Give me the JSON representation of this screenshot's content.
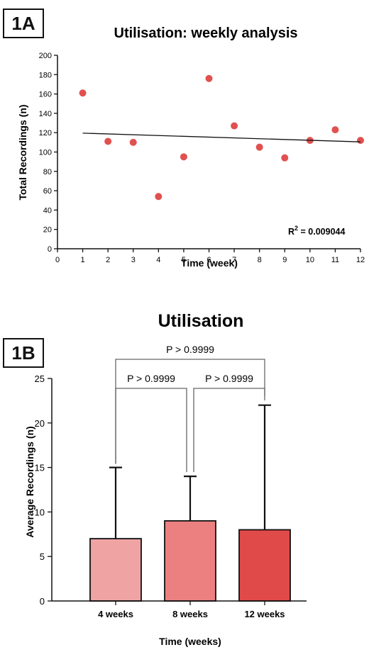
{
  "chart_data": [
    {
      "panel": "1A",
      "type": "scatter",
      "title": "Utilisation: weekly analysis",
      "xlabel": "Time (week)",
      "ylabel": "Total Recordings (n)",
      "xlim": [
        0,
        12
      ],
      "ylim": [
        0,
        200
      ],
      "xticks": [
        0,
        1,
        2,
        3,
        4,
        5,
        6,
        7,
        8,
        9,
        10,
        11,
        12
      ],
      "yticks": [
        0,
        20,
        40,
        60,
        80,
        100,
        120,
        140,
        160,
        180,
        200
      ],
      "point_color": "#e0514f",
      "x": [
        1,
        2,
        3,
        4,
        5,
        6,
        7,
        8,
        9,
        10,
        11,
        12
      ],
      "y": [
        161,
        111,
        110,
        54,
        95,
        176,
        127,
        105,
        94,
        112,
        123,
        112
      ],
      "trendline": {
        "x": [
          1,
          12
        ],
        "y": [
          119.5,
          110.5
        ]
      },
      "annotation": {
        "label": "R",
        "sup": "2",
        "value": " = 0.009044"
      }
    },
    {
      "panel": "1B",
      "type": "bar",
      "title": "Utilisation",
      "xlabel": "Time (weeks)",
      "ylabel": "Average Recordings (n)",
      "ylim": [
        0,
        25
      ],
      "yticks": [
        0,
        5,
        10,
        15,
        20,
        25
      ],
      "categories": [
        "4 weeks",
        "8 weeks",
        "12 weeks"
      ],
      "values": [
        7,
        9,
        8
      ],
      "error_upper": [
        15,
        14,
        22
      ],
      "colors": [
        "#efa3a3",
        "#ec8080",
        "#e04a48"
      ],
      "comparisons": [
        {
          "from": 0,
          "to": 2,
          "label": "P > 0.9999"
        },
        {
          "from": 0,
          "to": 1,
          "label": "P > 0.9999"
        },
        {
          "from": 1,
          "to": 2,
          "label": "P > 0.9999"
        }
      ]
    }
  ]
}
